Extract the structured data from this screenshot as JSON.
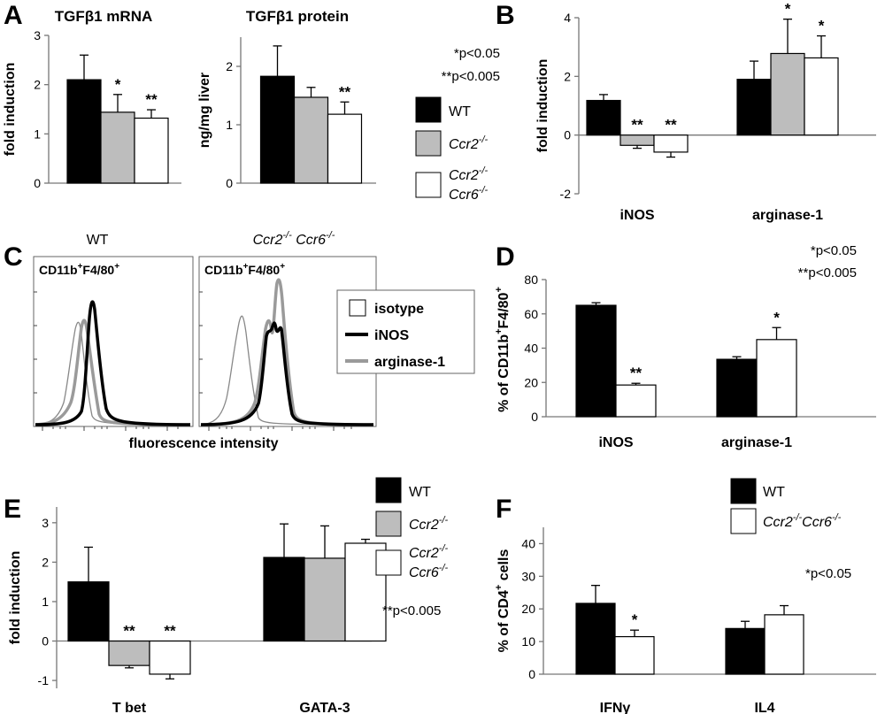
{
  "colors": {
    "wt": "#000000",
    "ccr2": "#bdbdbd",
    "ccr26": "#ffffff",
    "hist_isotype": "#888888",
    "hist_inos": "#000000",
    "hist_arg": "#9a9a9a"
  },
  "annotations": {
    "a": [
      "*p<0.05",
      "**p<0.005"
    ],
    "d": [
      "*p<0.05",
      "**p<0.005"
    ],
    "e": "**p<0.005",
    "f": "*p<0.05"
  },
  "legends": {
    "three": {
      "wt": "WT",
      "ccr2": {
        "base": "Ccr2",
        "sup": "-/-"
      },
      "ccr26": {
        "l1": "Ccr2",
        "l1sup": "-/-",
        "l2": "Ccr6",
        "l2sup": "-/-"
      }
    },
    "two": {
      "wt": "WT",
      "ccr26": {
        "a": "Ccr2",
        "asup": "-/-",
        "b": "Ccr6",
        "bsup": "-/-"
      }
    },
    "hist": [
      "isotype",
      "iNOS",
      "arginase-1"
    ]
  },
  "chart_data": [
    {
      "panel": "A",
      "type": "bar",
      "title": "TGFβ1 mRNA",
      "ylabel": "fold induction",
      "ylim": [
        0,
        3
      ],
      "yticks": [
        0,
        1,
        2,
        3
      ],
      "series": [
        {
          "key": "wt",
          "values": [
            2.1
          ],
          "errors": [
            0.5
          ],
          "sig": [
            ""
          ]
        },
        {
          "key": "ccr2",
          "values": [
            1.44
          ],
          "errors": [
            0.36
          ],
          "sig": [
            "*"
          ]
        },
        {
          "key": "ccr26",
          "values": [
            1.32
          ],
          "errors": [
            0.17
          ],
          "sig": [
            "**"
          ]
        }
      ]
    },
    {
      "panel": "A",
      "type": "bar",
      "title": "TGFβ1 protein",
      "ylabel": "ng/mg liver",
      "ylim": [
        0,
        2.5
      ],
      "yticks": [
        0,
        1,
        2
      ],
      "series": [
        {
          "key": "wt",
          "values": [
            1.83
          ],
          "errors": [
            0.52
          ],
          "sig": [
            ""
          ]
        },
        {
          "key": "ccr2",
          "values": [
            1.47
          ],
          "errors": [
            0.17
          ],
          "sig": [
            ""
          ]
        },
        {
          "key": "ccr26",
          "values": [
            1.18
          ],
          "errors": [
            0.21
          ],
          "sig": [
            "**"
          ]
        }
      ]
    },
    {
      "panel": "B",
      "type": "bar",
      "ylabel": "fold induction",
      "ylim": [
        -2,
        4
      ],
      "yticks": [
        -2,
        0,
        2,
        4
      ],
      "categories": [
        "iNOS",
        "arginase-1"
      ],
      "series": [
        {
          "key": "wt",
          "values": [
            1.18,
            1.9
          ],
          "errors": [
            0.2,
            0.62
          ],
          "sig": [
            "",
            ""
          ]
        },
        {
          "key": "ccr2",
          "values": [
            -0.35,
            2.78
          ],
          "errors": [
            0.1,
            1.17
          ],
          "sig": [
            "**",
            "*"
          ]
        },
        {
          "key": "ccr26",
          "values": [
            -0.58,
            2.63
          ],
          "errors": [
            0.17,
            0.75
          ],
          "sig": [
            "**",
            "*"
          ]
        }
      ]
    },
    {
      "panel": "C",
      "type": "line",
      "xlabel": "fluorescence intensity",
      "plots": [
        {
          "title": "WT",
          "gate": {
            "a": "CD11b",
            "b": "F4/80"
          }
        },
        {
          "title": {
            "a": "Ccr2",
            "asup": "-/-",
            "b": "Ccr6",
            "bsup": "-/-"
          },
          "gate": {
            "a": "CD11b",
            "b": "F4/80"
          }
        }
      ]
    },
    {
      "panel": "D",
      "type": "bar",
      "ylabel": {
        "base": "% of CD11b",
        "sup1": "+",
        "mid": "F4/80",
        "sup2": "+"
      },
      "ylim": [
        0,
        80
      ],
      "yticks": [
        0,
        20,
        40,
        60,
        80
      ],
      "categories": [
        "iNOS",
        "arginase-1"
      ],
      "series": [
        {
          "key": "wt",
          "values": [
            65,
            33.5
          ],
          "errors": [
            1.5,
            1.5
          ],
          "sig": [
            "",
            ""
          ]
        },
        {
          "key": "ccr26",
          "values": [
            18.5,
            45
          ],
          "errors": [
            1,
            7
          ],
          "sig": [
            "**",
            "*"
          ]
        }
      ]
    },
    {
      "panel": "E",
      "type": "bar",
      "ylabel": "fold induction",
      "ylim": [
        -1.2,
        3.4
      ],
      "yticks": [
        -1,
        0,
        1,
        2,
        3
      ],
      "categories": [
        "T bet",
        "GATA-3"
      ],
      "series": [
        {
          "key": "wt",
          "values": [
            1.5,
            2.12
          ],
          "errors": [
            0.88,
            0.85
          ],
          "sig": [
            "",
            ""
          ]
        },
        {
          "key": "ccr2",
          "values": [
            -0.62,
            2.1
          ],
          "errors": [
            0.06,
            0.82
          ],
          "sig": [
            "**",
            ""
          ]
        },
        {
          "key": "ccr26",
          "values": [
            -0.84,
            2.48
          ],
          "errors": [
            0.12,
            0.1
          ],
          "sig": [
            "**",
            ""
          ]
        }
      ]
    },
    {
      "panel": "F",
      "type": "bar",
      "ylabel": {
        "base": "% of CD4",
        "sup": "+",
        "tail": " cells"
      },
      "ylim": [
        0,
        45
      ],
      "yticks": [
        0,
        10,
        20,
        30,
        40
      ],
      "categories": [
        "IFNγ",
        "IL4"
      ],
      "series": [
        {
          "key": "wt",
          "values": [
            21.7,
            14
          ],
          "errors": [
            5.5,
            2.2
          ],
          "sig": [
            "",
            ""
          ]
        },
        {
          "key": "ccr26",
          "values": [
            11.5,
            18.2
          ],
          "errors": [
            2,
            2.8
          ],
          "sig": [
            "*",
            ""
          ]
        }
      ]
    }
  ]
}
